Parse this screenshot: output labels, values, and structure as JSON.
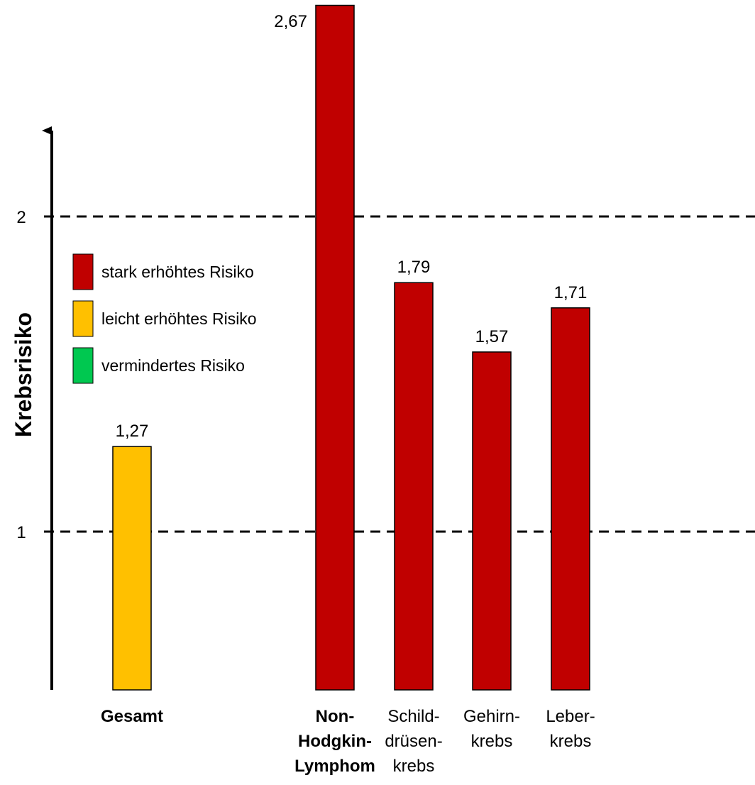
{
  "chart_data": {
    "type": "bar",
    "ylabel": "Krebsrisiko",
    "categories": [
      {
        "lines": [
          "Gesamt"
        ],
        "highlight": false,
        "bold": true
      },
      {
        "lines": [
          "Non-",
          "Hodgkin-",
          "Lymphom"
        ],
        "highlight": true,
        "bold": true
      },
      {
        "lines": [
          "Schild-",
          "drüsen-",
          "krebs"
        ],
        "highlight": false,
        "bold": false
      },
      {
        "lines": [
          "Gehirn-",
          "krebs"
        ],
        "highlight": false,
        "bold": false
      },
      {
        "lines": [
          "Leber-",
          "krebs"
        ],
        "highlight": false,
        "bold": false
      }
    ],
    "values": [
      1.27,
      2.67,
      1.79,
      1.57,
      1.71
    ],
    "value_labels": [
      "1,27",
      "2,67",
      "1,79",
      "1,57",
      "1,71"
    ],
    "risk_levels": [
      "leicht",
      "stark",
      "stark",
      "stark",
      "stark"
    ],
    "yticks": [
      {
        "value": 1,
        "label": "1"
      },
      {
        "value": 2,
        "label": "2"
      }
    ],
    "reference_lines": [
      1,
      2
    ],
    "ylim": [
      0.5,
      2.67
    ],
    "grid": false,
    "legend_position": "left",
    "legend": [
      {
        "key": "stark",
        "label": "stark erhöhtes Risiko",
        "color": "#C00000"
      },
      {
        "key": "leicht",
        "label": "leicht erhöhtes Risiko",
        "color": "#FFC000"
      },
      {
        "key": "vermindert",
        "label": "vermindertes Risiko",
        "color": "#00C850"
      }
    ],
    "highlight_color": "#C00000"
  }
}
